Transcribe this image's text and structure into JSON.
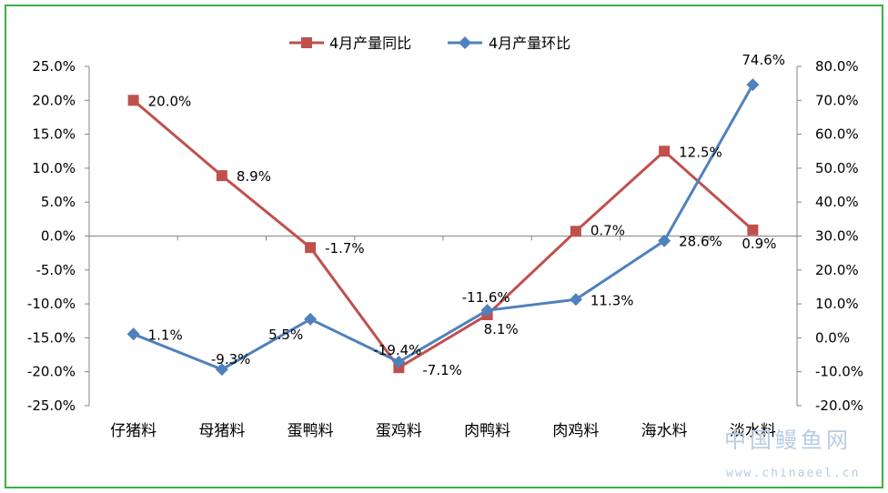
{
  "chart_data": {
    "type": "line",
    "categories": [
      "仔猪料",
      "母猪料",
      "蛋鸭料",
      "蛋鸡料",
      "肉鸭料",
      "肉鸡料",
      "海水料",
      "淡水料"
    ],
    "series": [
      {
        "name": "4月产量同比",
        "axis": "left",
        "color": "#c0504d",
        "marker": "square",
        "values": [
          20.0,
          8.9,
          -1.7,
          -19.4,
          -11.6,
          0.7,
          12.5,
          0.9
        ],
        "labels": [
          "20.0%",
          "8.9%",
          "-1.7%",
          "-19.4%",
          "-11.6%",
          "0.7%",
          "12.5%",
          "0.9%"
        ]
      },
      {
        "name": "4月产量环比",
        "axis": "right",
        "color": "#4f81bd",
        "marker": "diamond",
        "values": [
          1.1,
          -9.3,
          5.5,
          -7.1,
          8.1,
          11.3,
          28.6,
          74.6
        ],
        "labels": [
          "1.1%",
          "-9.3%",
          "5.5%",
          "-7.1%",
          "8.1%",
          "11.3%",
          "28.6%",
          "74.6%"
        ]
      }
    ],
    "y_left": {
      "min": -25,
      "max": 25,
      "step": 5,
      "tick_labels": [
        "25.0%",
        "20.0%",
        "15.0%",
        "10.0%",
        "5.0%",
        "0.0%",
        "-5.0%",
        "-10.0%",
        "-15.0%",
        "-20.0%",
        "-25.0%"
      ]
    },
    "y_right": {
      "min": -20,
      "max": 80,
      "step": 10,
      "tick_labels": [
        "80.0%",
        "70.0%",
        "60.0%",
        "50.0%",
        "40.0%",
        "30.0%",
        "20.0%",
        "10.0%",
        "0.0%",
        "-10.0%",
        "-20.0%"
      ]
    },
    "legend_position": "top-center",
    "grid": false,
    "border_color": "#3cb043"
  },
  "watermark": {
    "cn": "中国鳗鱼网",
    "url": "www.chinaeel.cn"
  }
}
